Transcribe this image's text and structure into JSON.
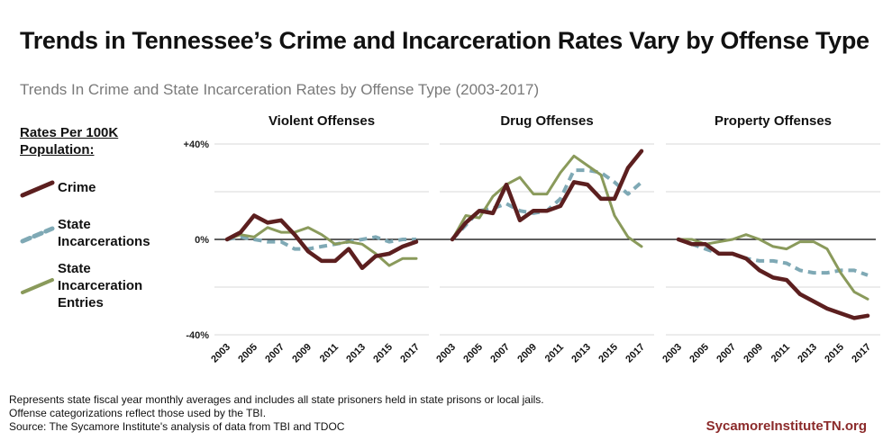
{
  "header": {
    "title": "Trends in Tennessee’s Crime and Incarceration Rates Vary by Offense Type",
    "subtitle": "Trends In Crime and State Incarceration Rates by Offense Type (2003-2017)"
  },
  "legend": {
    "heading": "Rates Per 100K Population:",
    "items": [
      {
        "label": "Crime",
        "color": "#5c1f1f",
        "style": "solid"
      },
      {
        "label": "State Incarcerations",
        "color": "#7fa9b5",
        "style": "dashed"
      },
      {
        "label": "State Incarceration Entries",
        "color": "#8a9a5b",
        "style": "solid"
      }
    ]
  },
  "footer": {
    "notes": [
      "Represents state fiscal year monthly averages and includes all state prisoners held in state prisons or local jails.",
      "Offense categorizations reflect those used by the TBI.",
      "Source: The Sycamore Institute's analysis of data from TBI and TDOC"
    ],
    "brand": "SycamoreInstituteTN.org"
  },
  "chart_data": {
    "type": "line",
    "x": [
      2003,
      2004,
      2005,
      2006,
      2007,
      2008,
      2009,
      2010,
      2011,
      2012,
      2013,
      2014,
      2015,
      2016,
      2017
    ],
    "x_tick_labels": [
      "2003",
      "2005",
      "2007",
      "2009",
      "2011",
      "2013",
      "2015",
      "2017"
    ],
    "ylim": [
      -40,
      40
    ],
    "y_tick_labels": [
      "+40%",
      "0%",
      "-40%"
    ],
    "panels": [
      {
        "title": "Violent Offenses",
        "series": [
          {
            "name": "Crime",
            "values": [
              0,
              3,
              10,
              7,
              8,
              2,
              -5,
              -9,
              -9,
              -4,
              -12,
              -7,
              -6,
              -3,
              -1
            ]
          },
          {
            "name": "State Incarcerations",
            "values": [
              0,
              1,
              0,
              -1,
              -1,
              -4,
              -4,
              -3,
              -2,
              -1,
              0,
              1,
              -1,
              0,
              0
            ]
          },
          {
            "name": "State Incarceration Entries",
            "values": [
              0,
              2,
              1,
              5,
              3,
              3,
              5,
              2,
              -2,
              -1,
              -2,
              -6,
              -11,
              -8,
              -8
            ]
          }
        ]
      },
      {
        "title": "Drug Offenses",
        "series": [
          {
            "name": "Crime",
            "values": [
              0,
              7,
              12,
              11,
              23,
              8,
              12,
              12,
              14,
              24,
              23,
              17,
              17,
              30,
              37
            ]
          },
          {
            "name": "State Incarcerations",
            "values": [
              0,
              6,
              12,
              13,
              15,
              12,
              11,
              12,
              17,
              29,
              29,
              28,
              24,
              19,
              24
            ]
          },
          {
            "name": "State Incarceration Entries",
            "values": [
              0,
              10,
              9,
              18,
              23,
              26,
              19,
              19,
              28,
              35,
              31,
              27,
              10,
              1,
              -3
            ]
          }
        ]
      },
      {
        "title": "Property Offenses",
        "series": [
          {
            "name": "Crime",
            "values": [
              0,
              -2,
              -2,
              -6,
              -6,
              -8,
              -13,
              -16,
              -17,
              -23,
              -26,
              -29,
              -31,
              -33,
              -32
            ]
          },
          {
            "name": "State Incarcerations",
            "values": [
              0,
              -2,
              -4,
              -6,
              -6,
              -8,
              -9,
              -9,
              -10,
              -13,
              -14,
              -14,
              -13,
              -13,
              -15
            ]
          },
          {
            "name": "State Incarceration Entries",
            "values": [
              0,
              0,
              -2,
              -1,
              0,
              2,
              0,
              -3,
              -4,
              -1,
              -1,
              -4,
              -14,
              -22,
              -25
            ]
          }
        ]
      }
    ],
    "grid": true
  }
}
